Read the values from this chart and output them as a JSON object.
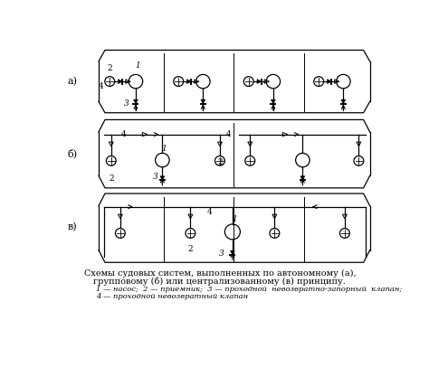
{
  "bg_color": "#ffffff",
  "fig_width": 4.74,
  "fig_height": 4.17,
  "dpi": 100,
  "caption_line1": "Схемы судовых систем, выполненных по автономному (а),",
  "caption_line2": "групповому (б) или централизованному (в) принципу.",
  "legend_line1": "1 — насос;  2 — приемник;  3 — проходной  невозвратно-запорный  клапан;",
  "legend_line2": "4 — проходной невозвратный клапан",
  "label_a": "а)",
  "label_b": "б)",
  "label_v": "в)"
}
